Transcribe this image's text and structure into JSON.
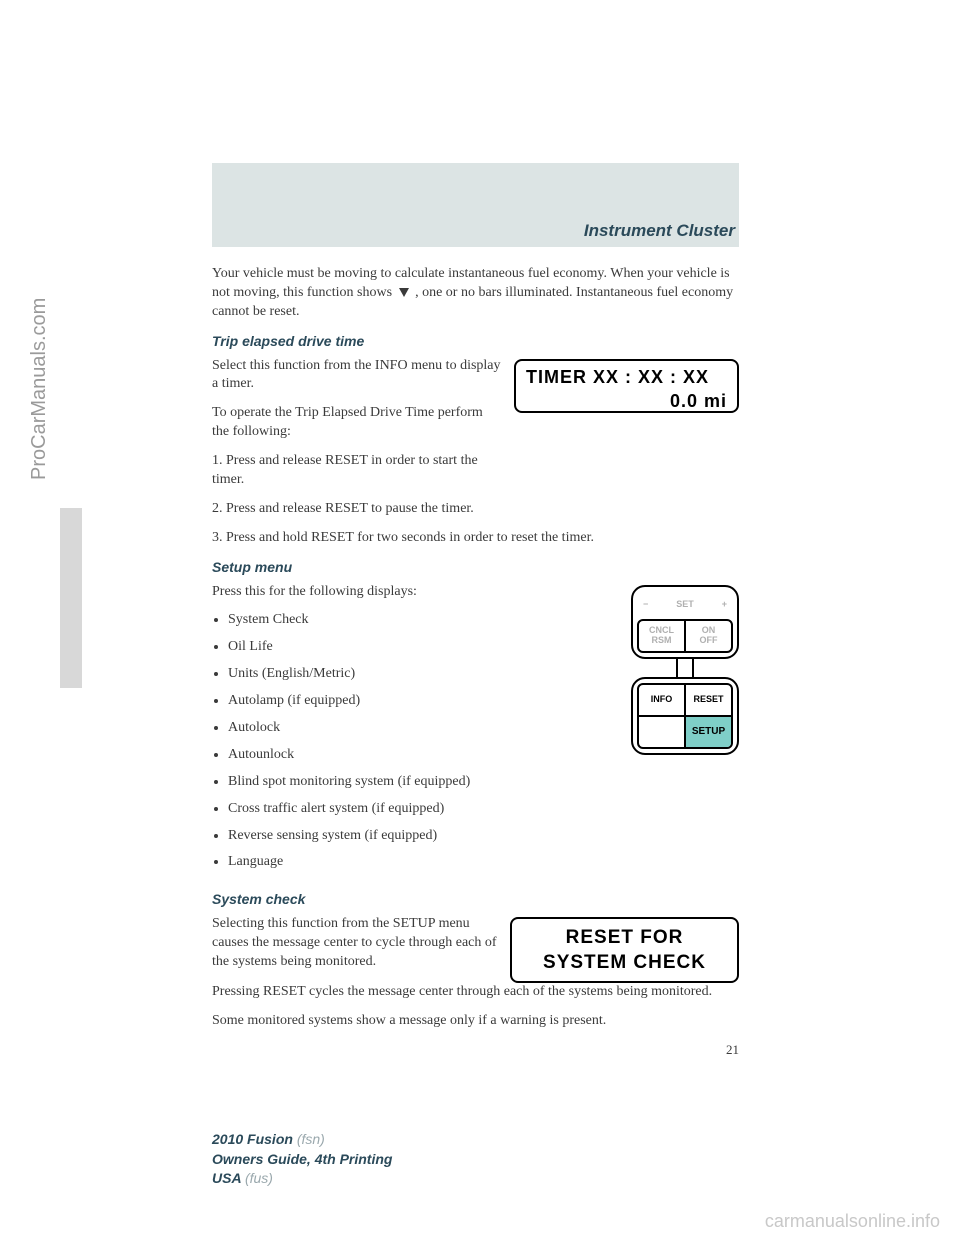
{
  "watermark_left": "ProCarManuals.com",
  "watermark_bottom": "carmanualsonline.info",
  "chapter_title": "Instrument Cluster",
  "intro_para_a": "Your vehicle must be moving to calculate instantaneous fuel economy. When your vehicle is not moving, this function shows",
  "intro_para_b": ", one or no bars illuminated. Instantaneous fuel economy cannot be reset.",
  "section1": {
    "heading": "Trip elapsed drive time",
    "p1": "Select this function from the INFO menu to display a timer.",
    "p2": "To operate the Trip Elapsed Drive Time perform the following:",
    "s1": "1. Press and release RESET in order to start the timer.",
    "s2": "2. Press and release RESET to pause the timer.",
    "s3": "3. Press and hold RESET for two seconds in order to reset the timer."
  },
  "timer_box": {
    "line1": "TIMER  XX : XX : XX",
    "line2": "0.0 mi"
  },
  "section2": {
    "heading": "Setup menu",
    "intro": "Press this for the following displays:",
    "items": [
      "System Check",
      "Oil Life",
      "Units (English/Metric)",
      "Autolamp (if equipped)",
      "Autolock",
      "Autounlock",
      "Blind spot monitoring system (if equipped)",
      "Cross traffic alert system (if equipped)",
      "Reverse sensing system (if equipped)",
      "Language"
    ]
  },
  "keypad": {
    "top_minus": "−",
    "top_label": "SET",
    "top_plus": "+",
    "cncl": "CNCL",
    "rsm": "RSM",
    "on": "ON",
    "off": "OFF",
    "info": "INFO",
    "reset": "RESET",
    "setup": "SETUP"
  },
  "section3": {
    "heading": "System check",
    "p1": "Selecting this function from the SETUP menu causes the message center to cycle through each of the systems being monitored.",
    "p2": "Pressing RESET cycles the message center through each of the systems being monitored.",
    "p3": "Some monitored systems show a message only if a warning is present."
  },
  "system_check_box": {
    "line1": "RESET FOR",
    "line2": "SYSTEM CHECK"
  },
  "page_number": "21",
  "footer": {
    "model": "2010 Fusion",
    "model_code": "(fsn)",
    "guide": "Owners Guide, 4th Printing",
    "region": "USA",
    "region_code": "(fus)"
  },
  "colors": {
    "banner_bg": "#dce4e4",
    "heading_color": "#2b4a5a",
    "setup_bg": "#7fcfc8"
  }
}
